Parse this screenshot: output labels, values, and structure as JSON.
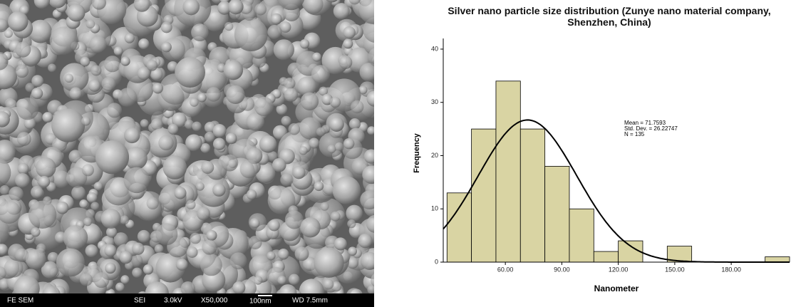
{
  "sem_image": {
    "info_bar": [
      "FE SEM",
      "SEI",
      "3.0kV",
      "X50,000",
      "100nm",
      "WD 7.5mm"
    ]
  },
  "chart_data": {
    "type": "histogram",
    "title": "Silver nano particle size distribution (Zunye nano material company, Shenzhen, China)",
    "x_label": "Nanometer",
    "y_label": "Frequency",
    "bins": [
      29,
      42,
      55,
      68,
      81,
      94,
      107,
      120,
      133,
      146,
      159,
      172,
      185,
      198,
      211
    ],
    "values": [
      13,
      25,
      34,
      25,
      18,
      10,
      2,
      4,
      0,
      3,
      0,
      0,
      0,
      1
    ],
    "color": "#d9d4a3",
    "xlim": [
      27,
      211
    ],
    "ylim": [
      0,
      42
    ],
    "xticks": [
      {
        "value": 60,
        "label": "60.00"
      },
      {
        "value": 90,
        "label": "90.00"
      },
      {
        "value": 120,
        "label": "120.00"
      },
      {
        "value": 150,
        "label": "150.00"
      },
      {
        "value": 180,
        "label": "180.00"
      }
    ],
    "yticks": [
      0,
      10,
      20,
      30,
      40
    ],
    "normal_curve": {
      "mean": 71.7593,
      "sd": 26.22747,
      "n": 135
    },
    "annotations": [
      "Mean = 71.7593",
      "Std. Dev. = 26.22747",
      "N = 135"
    ]
  }
}
